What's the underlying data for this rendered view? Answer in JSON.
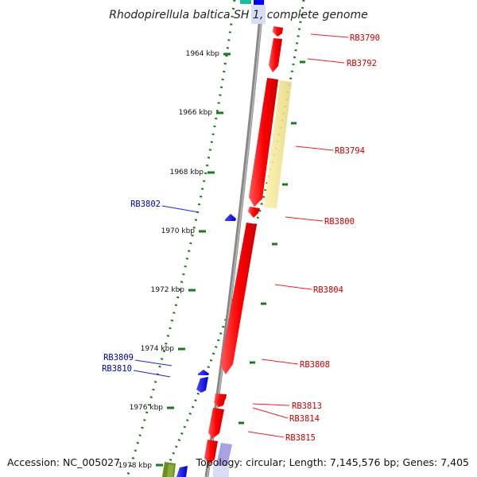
{
  "title": "Rhodopirellula baltica SH 1, complete genome",
  "accession": "Accession: NC_005027",
  "topology": "Topology: circular; Length: 7,145,576 bp; Genes: 7,405",
  "colors": {
    "forward": "#ff0000",
    "reverse": "#0000ff",
    "forward_label": "#cc0000",
    "reverse_label": "#0000aa",
    "tick": "#1a7a1a",
    "backbone": "#888888",
    "highlight": "#f0e68c"
  },
  "scale_labels": [
    "1964 kbp",
    "1966 kbp",
    "1968 kbp",
    "1970 kbp",
    "1972 kbp",
    "1974 kbp",
    "1976 kbp",
    "1978 kbp"
  ],
  "gene_labels": {
    "forward": [
      "RB3790",
      "RB3792",
      "RB3794",
      "RB3800",
      "RB3804",
      "RB3808",
      "RB3813",
      "RB3814",
      "RB3815"
    ],
    "reverse": [
      "RB3802",
      "RB3809",
      "RB3810"
    ]
  }
}
